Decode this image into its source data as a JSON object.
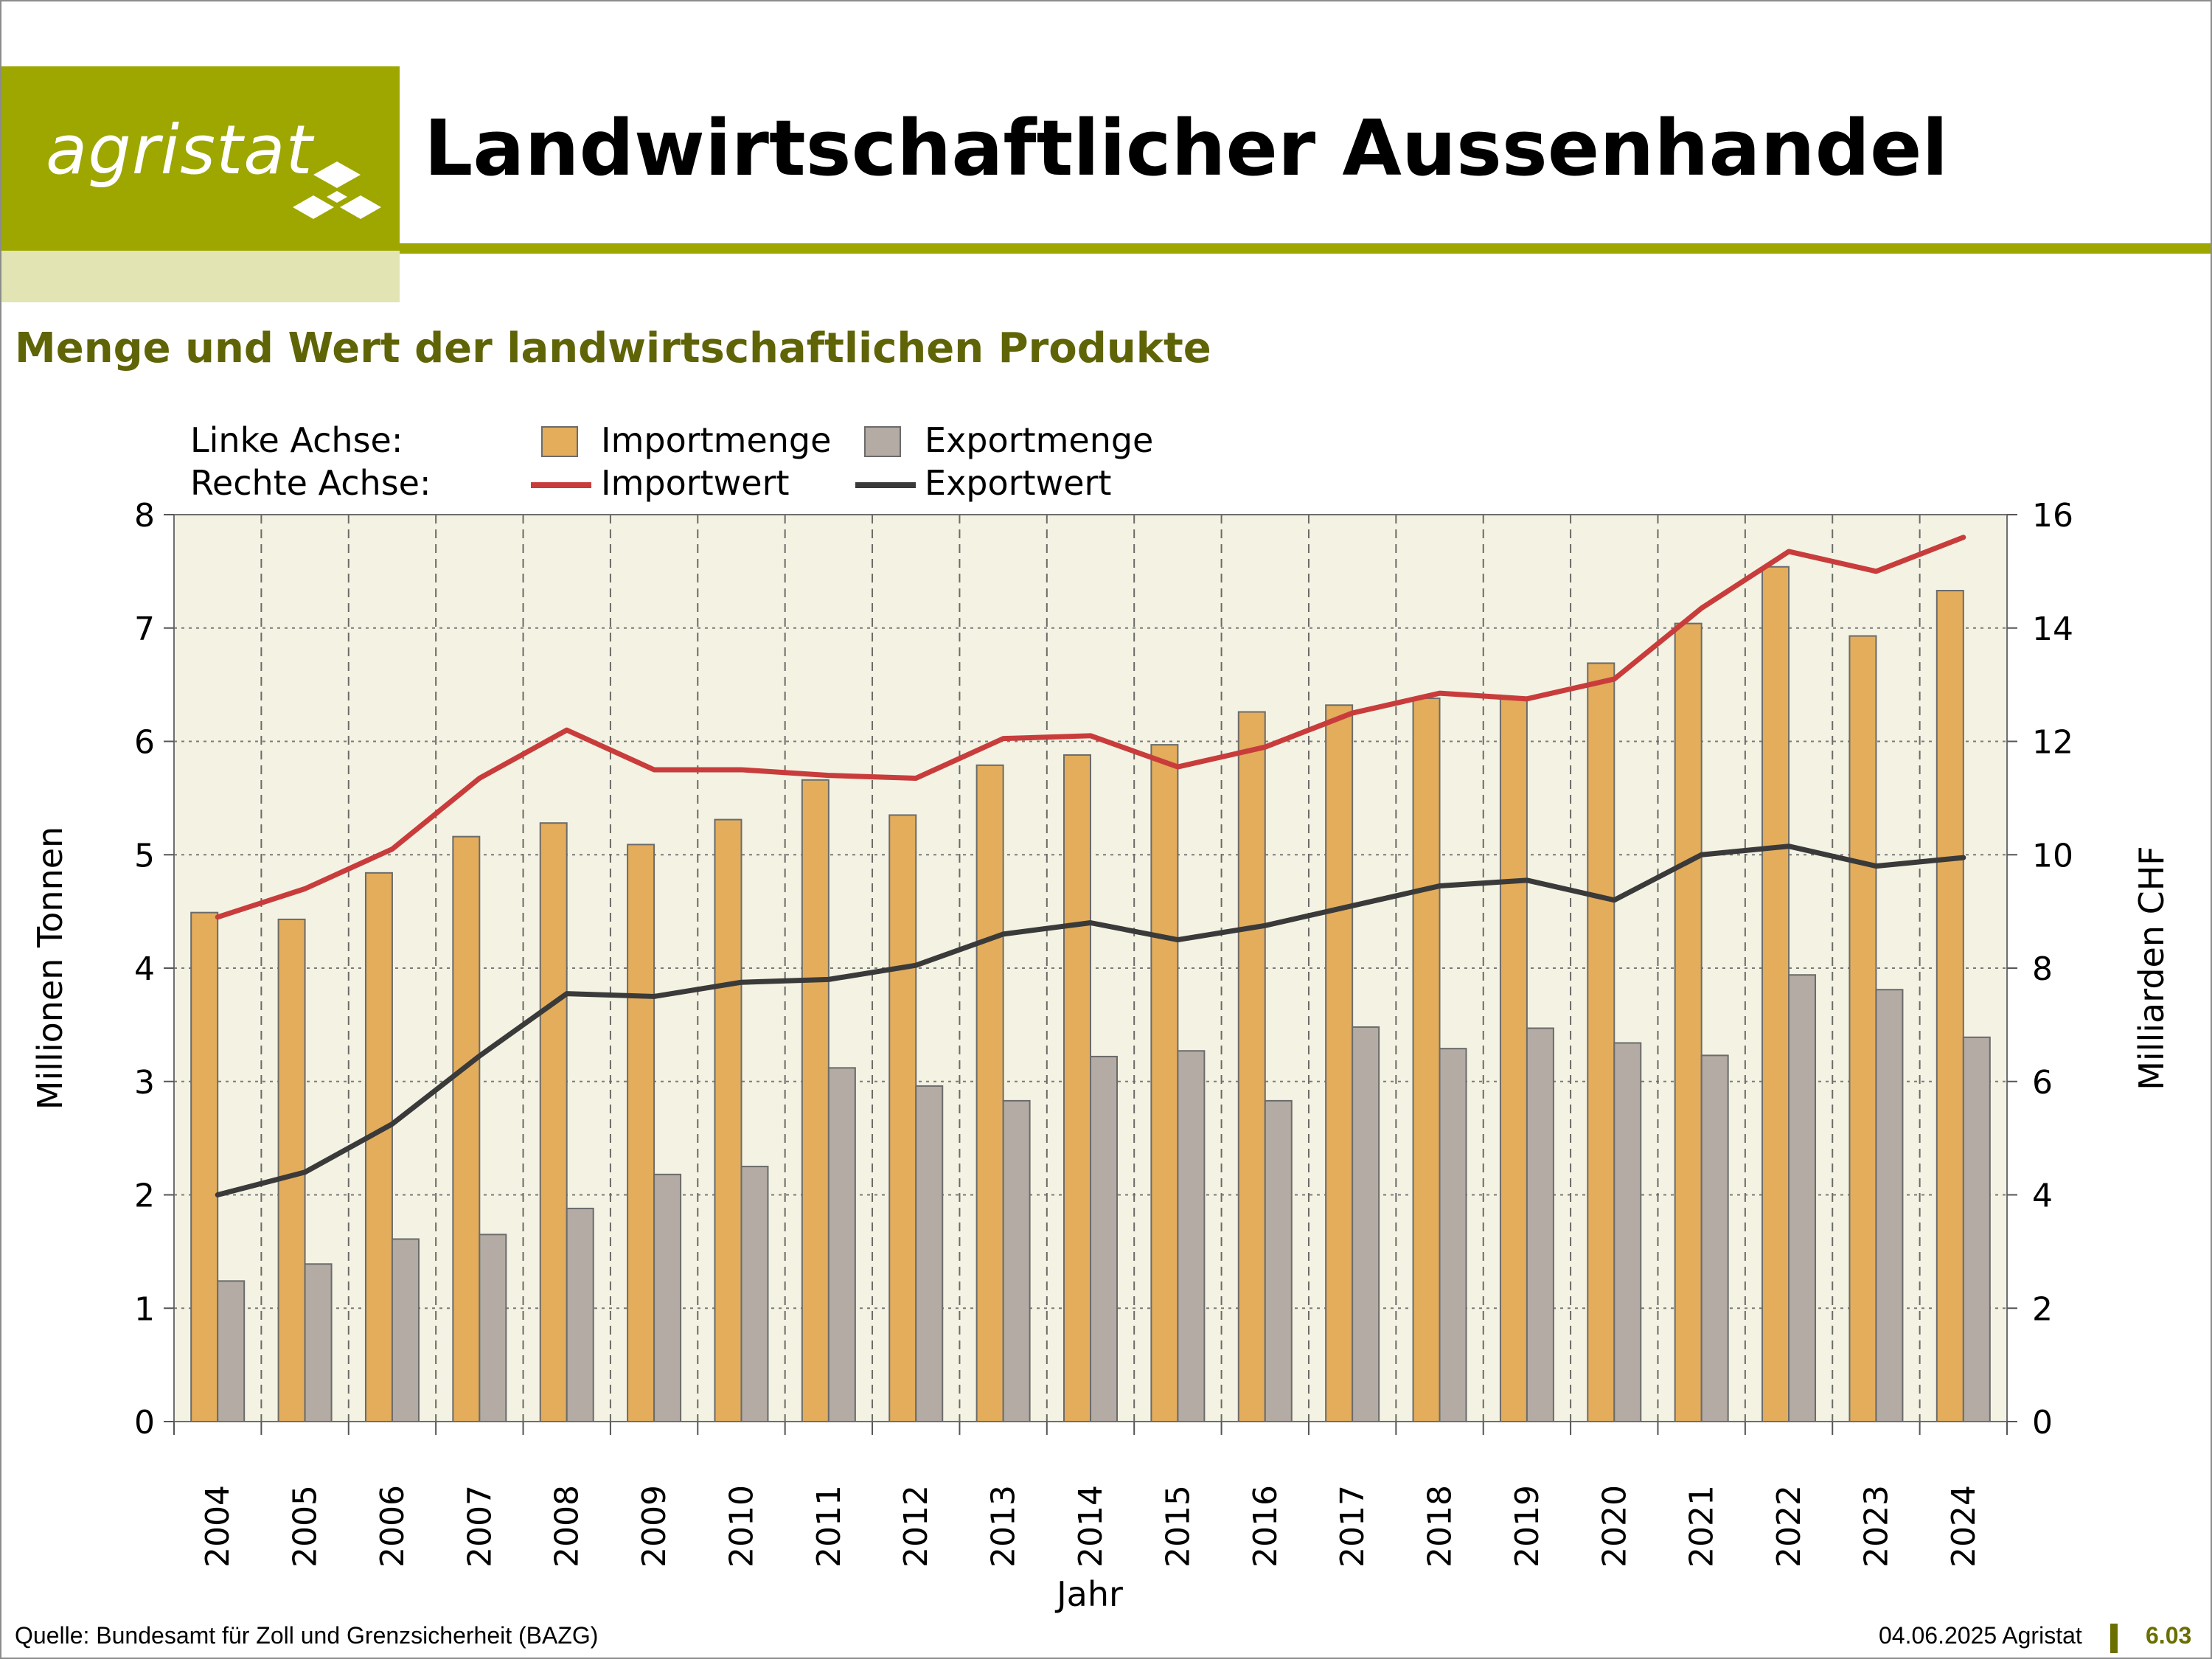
{
  "logo": {
    "text": "agristat"
  },
  "title": "Landwirtschaftlicher Aussenhandel",
  "subtitle": "Menge und Wert der landwirtschaftlichen Produkte",
  "legend": {
    "left_axis_label": "Linke Achse:",
    "right_axis_label": "Rechte Achse:",
    "import_qty": "Importmenge",
    "export_qty": "Exportmenge",
    "import_val": "Importwert",
    "export_val": "Exportwert"
  },
  "footer": {
    "source": "Quelle: Bundesamt für Zoll und Grenzsicherheit (BAZG)",
    "date": "04.06.2025 Agristat",
    "page": "6.03"
  },
  "colors": {
    "import_bar": "#e3ad5c",
    "export_bar": "#b3aba4",
    "import_line": "#c93c3c",
    "export_line": "#3a3a3a",
    "plot_bg": "#f4f3e3",
    "brand": "#9ea600"
  },
  "chart_data": {
    "type": "bar",
    "xlabel": "Jahr",
    "ylabel": "Millionen Tonnen",
    "y2label": "Milliarden CHF",
    "ylim": [
      0,
      8
    ],
    "y2lim": [
      0,
      16
    ],
    "yticks": [
      "0",
      "1",
      "2",
      "3",
      "4",
      "5",
      "6",
      "7",
      "8"
    ],
    "y2ticks": [
      "0",
      "2",
      "4",
      "6",
      "8",
      "10",
      "12",
      "14",
      "16"
    ],
    "grid": true,
    "categories": [
      "2004",
      "2005",
      "2006",
      "2007",
      "2008",
      "2009",
      "2010",
      "2011",
      "2012",
      "2013",
      "2014",
      "2015",
      "2016",
      "2017",
      "2018",
      "2019",
      "2020",
      "2021",
      "2022",
      "2023",
      "2024"
    ],
    "series": [
      {
        "name": "Importmenge",
        "kind": "bar",
        "axis": "left",
        "values": [
          4.49,
          4.43,
          4.84,
          5.16,
          5.28,
          5.09,
          5.31,
          5.66,
          5.35,
          5.79,
          5.88,
          5.97,
          6.26,
          6.32,
          6.38,
          6.39,
          6.69,
          7.04,
          7.54,
          6.93,
          7.33
        ]
      },
      {
        "name": "Exportmenge",
        "kind": "bar",
        "axis": "left",
        "values": [
          1.24,
          1.39,
          1.61,
          1.65,
          1.88,
          2.18,
          2.25,
          3.12,
          2.96,
          2.83,
          3.22,
          3.27,
          2.83,
          3.48,
          3.29,
          3.47,
          3.34,
          3.23,
          3.94,
          3.81,
          3.39
        ]
      },
      {
        "name": "Importwert",
        "kind": "line",
        "axis": "right",
        "values": [
          8.9,
          9.4,
          10.1,
          11.35,
          12.2,
          11.5,
          11.5,
          11.4,
          11.35,
          12.05,
          12.1,
          11.55,
          11.9,
          12.5,
          12.85,
          12.75,
          13.1,
          14.35,
          15.35,
          15.0,
          15.6
        ]
      },
      {
        "name": "Exportwert",
        "kind": "line",
        "axis": "right",
        "values": [
          4.0,
          4.4,
          5.25,
          6.45,
          7.55,
          7.5,
          7.75,
          7.8,
          8.05,
          8.6,
          8.8,
          8.5,
          8.75,
          9.1,
          9.45,
          9.55,
          9.2,
          10.0,
          10.15,
          9.8,
          9.95
        ]
      }
    ]
  }
}
